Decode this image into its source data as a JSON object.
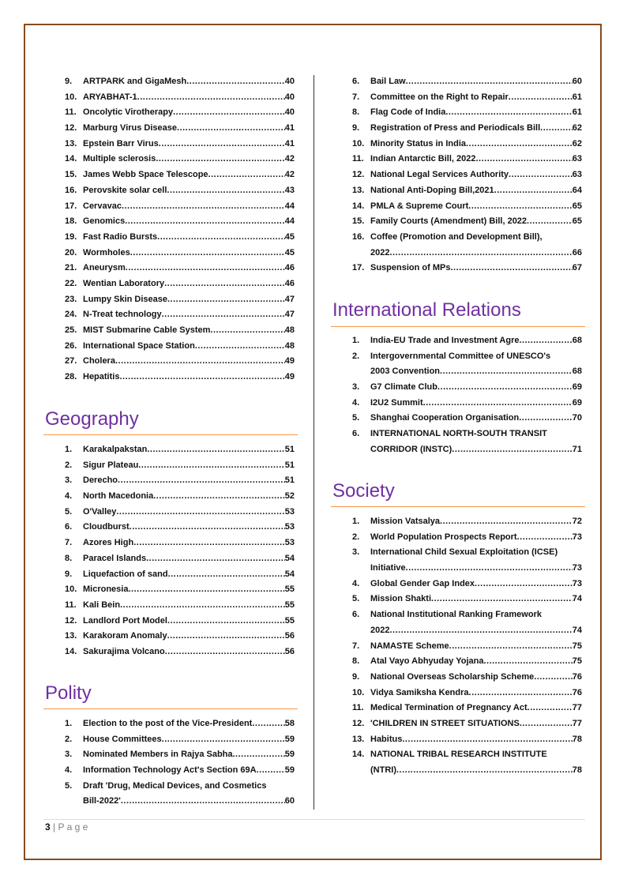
{
  "left": {
    "science_items": [
      {
        "num": "9.",
        "title": "ARTPARK and GigaMesh",
        "page": "40"
      },
      {
        "num": "10.",
        "title": "ARYABHAT-1",
        "page": "40"
      },
      {
        "num": "11.",
        "title": "Oncolytic Virotherapy",
        "page": "40"
      },
      {
        "num": "12.",
        "title": "Marburg Virus Disease",
        "page": "41"
      },
      {
        "num": "13.",
        "title": "Epstein Barr Virus",
        "page": "41"
      },
      {
        "num": "14.",
        "title": "Multiple sclerosis",
        "page": "42"
      },
      {
        "num": "15.",
        "title": "James Webb Space Telescope",
        "page": "42"
      },
      {
        "num": "16.",
        "title": "Perovskite solar cell",
        "page": "43"
      },
      {
        "num": "17.",
        "title": "Cervavac",
        "page": "44"
      },
      {
        "num": "18.",
        "title": "Genomics",
        "page": "44"
      },
      {
        "num": "19.",
        "title": "Fast Radio Bursts",
        "page": "45"
      },
      {
        "num": "20.",
        "title": "Wormholes",
        "page": "45"
      },
      {
        "num": "21.",
        "title": "Aneurysm",
        "page": "46"
      },
      {
        "num": "22.",
        "title": "Wentian Laboratory",
        "page": "46"
      },
      {
        "num": "23.",
        "title": "Lumpy Skin Disease",
        "page": "47"
      },
      {
        "num": "24.",
        "title": "N-Treat technology",
        "page": "47"
      },
      {
        "num": "25.",
        "title": "MIST Submarine Cable System",
        "page": "48"
      },
      {
        "num": "26.",
        "title": "International Space Station",
        "page": "48"
      },
      {
        "num": "27.",
        "title": "Cholera",
        "page": "49"
      },
      {
        "num": "28.",
        "title": "Hepatitis",
        "page": "49"
      }
    ],
    "geography": {
      "heading": "Geography",
      "items": [
        {
          "num": "1.",
          "title": "Karakalpakstan",
          "page": "51"
        },
        {
          "num": "2.",
          "title": "Sigur Plateau",
          "page": "51"
        },
        {
          "num": "3.",
          "title": "Derecho",
          "page": "51"
        },
        {
          "num": "4.",
          "title": "North Macedonia",
          "page": "52"
        },
        {
          "num": "5.",
          "title": "O'Valley",
          "page": "53"
        },
        {
          "num": "6.",
          "title": "Cloudburst",
          "page": "53"
        },
        {
          "num": "7.",
          "title": "Azores High",
          "page": "53"
        },
        {
          "num": "8.",
          "title": "Paracel Islands",
          "page": "54"
        },
        {
          "num": "9.",
          "title": "Liquefaction of sand",
          "page": "54"
        },
        {
          "num": "10.",
          "title": "Micronesia",
          "page": "55"
        },
        {
          "num": "11.",
          "title": "Kali Bein",
          "page": "55"
        },
        {
          "num": "12.",
          "title": "Landlord Port Model",
          "page": "55"
        },
        {
          "num": "13.",
          "title": "Karakoram Anomaly",
          "page": "56"
        },
        {
          "num": "14.",
          "title": "Sakurajima Volcano",
          "page": "56"
        }
      ]
    },
    "polity": {
      "heading": "Polity",
      "items": [
        {
          "num": "1.",
          "title": "Election to the post of the Vice-President",
          "page": "58"
        },
        {
          "num": "2.",
          "title": "House Committees",
          "page": "59"
        },
        {
          "num": "3.",
          "title": "Nominated Members in Rajya Sabha",
          "page": "59"
        },
        {
          "num": "4.",
          "title": "Information Technology Act's Section 69A",
          "page": "59"
        },
        {
          "num": "5.",
          "title": "Draft 'Drug, Medical Devices, and Cosmetics",
          "cont": "Bill-2022'",
          "page": "60"
        }
      ]
    }
  },
  "right": {
    "polity_items": [
      {
        "num": "6.",
        "title": "Bail Law",
        "page": "60"
      },
      {
        "num": "7.",
        "title": "Committee on the Right to Repair",
        "page": "61"
      },
      {
        "num": "8.",
        "title": "Flag Code of India",
        "page": "61"
      },
      {
        "num": "9.",
        "title": "Registration of Press and Periodicals Bill",
        "page": "62"
      },
      {
        "num": "10.",
        "title": "Minority Status in India",
        "page": "62"
      },
      {
        "num": "11.",
        "title": "Indian Antarctic Bill, 2022",
        "page": "63"
      },
      {
        "num": "12.",
        "title": "National Legal Services Authority",
        "page": "63"
      },
      {
        "num": "13.",
        "title": "National Anti-Doping Bill,2021",
        "page": "64"
      },
      {
        "num": "14.",
        "title": "PMLA & Supreme Court",
        "page": "65"
      },
      {
        "num": "15.",
        "title": "Family Courts (Amendment) Bill, 2022",
        "page": "65"
      },
      {
        "num": "16.",
        "title": "Coffee (Promotion and Development Bill),",
        "cont": "2022",
        "page": "66"
      },
      {
        "num": "17.",
        "title": "Suspension of MPs",
        "page": "67"
      }
    ],
    "international": {
      "heading": "International Relations",
      "items": [
        {
          "num": "1.",
          "title": "India-EU Trade and Investment Agre",
          "page": "68"
        },
        {
          "num": "2.",
          "title": "Intergovernmental Committee of UNESCO's",
          "cont": "2003 Convention",
          "page": "68"
        },
        {
          "num": "3.",
          "title": "G7 Climate Club",
          "page": "69"
        },
        {
          "num": "4.",
          "title": "I2U2 Summit",
          "page": "69"
        },
        {
          "num": "5.",
          "title": "Shanghai Cooperation Organisation",
          "page": "70"
        },
        {
          "num": "6.",
          "title": "INTERNATIONAL NORTH-SOUTH TRANSIT",
          "cont": "CORRIDOR (INSTC)",
          "page": "71"
        }
      ]
    },
    "society": {
      "heading": "Society",
      "items": [
        {
          "num": "1.",
          "title": "Mission Vatsalya",
          "page": "72"
        },
        {
          "num": "2.",
          "title": "World Population Prospects Report",
          "page": "73"
        },
        {
          "num": "3.",
          "title": "International Child Sexual Exploitation (ICSE)",
          "cont": "Initiative",
          "page": "73"
        },
        {
          "num": "4.",
          "title": "Global Gender Gap Index",
          "page": "73"
        },
        {
          "num": "5.",
          "title": "Mission Shakti",
          "page": "74"
        },
        {
          "num": "6.",
          "title": "National Institutional Ranking Framework",
          "cont": "2022",
          "page": "74"
        },
        {
          "num": "7.",
          "title": "NAMASTE Scheme",
          "page": "75"
        },
        {
          "num": "8.",
          "title": "Atal Vayo Abhyuday Yojana",
          "page": "75"
        },
        {
          "num": "9.",
          "title": "National Overseas Scholarship Scheme",
          "page": "76"
        },
        {
          "num": "10.",
          "title": "Vidya Samiksha Kendra",
          "page": "76"
        },
        {
          "num": "11.",
          "title": "Medical Termination of Pregnancy Act",
          "page": "77"
        },
        {
          "num": "12.",
          "title": "'CHILDREN IN STREET SITUATIONS",
          "page": "77"
        },
        {
          "num": "13.",
          "title": "Habitus",
          "page": "78"
        },
        {
          "num": "14.",
          "title": "NATIONAL TRIBAL RESEARCH INSTITUTE",
          "cont": "(NTRI)",
          "page": "78"
        }
      ]
    }
  },
  "footer": {
    "page_number": "3",
    "separator": " | ",
    "label": "P a g e"
  },
  "colors": {
    "heading": "#7030A0",
    "rule": "#F79646",
    "border": "#8B4A1C"
  }
}
